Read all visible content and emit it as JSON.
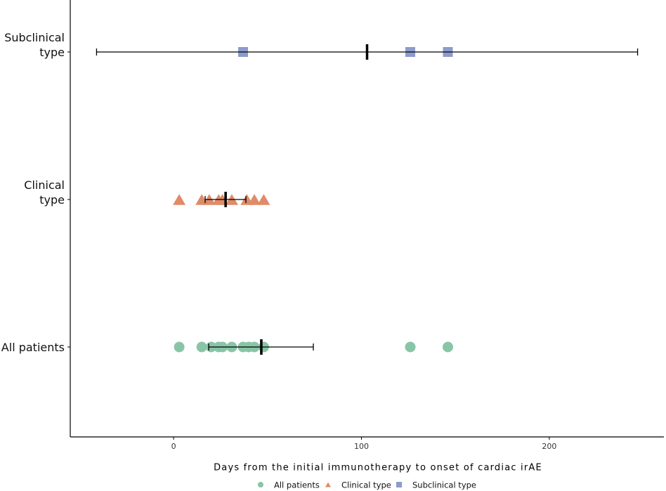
{
  "chart_data": {
    "type": "dot",
    "x_label": "Days from the initial immunotherapy to onset of cardiac irAE",
    "xlim": [
      -55,
      261
    ],
    "xticks": [
      0,
      100,
      200
    ],
    "series": [
      {
        "name": "All patients",
        "color": "#88c5a7",
        "marker": "circle",
        "values": [
          3,
          15,
          20,
          24,
          26,
          31,
          37,
          40,
          43,
          48,
          126,
          146
        ],
        "mean": 46.7,
        "ci_low": 18.7,
        "ci_high": 74.4
      },
      {
        "name": "Clinical type",
        "color": "#e08b67",
        "marker": "triangle",
        "values": [
          3,
          15,
          19,
          24,
          26,
          31,
          39,
          43,
          48
        ],
        "mean": 27.7,
        "ci_low": 16.8,
        "ci_high": 38.5
      },
      {
        "name": "Subclinical type",
        "color": "#8d9bcc",
        "marker": "square",
        "values": [
          37,
          126,
          146
        ],
        "mean": 103,
        "ci_low": -41,
        "ci_high": 247
      }
    ]
  }
}
